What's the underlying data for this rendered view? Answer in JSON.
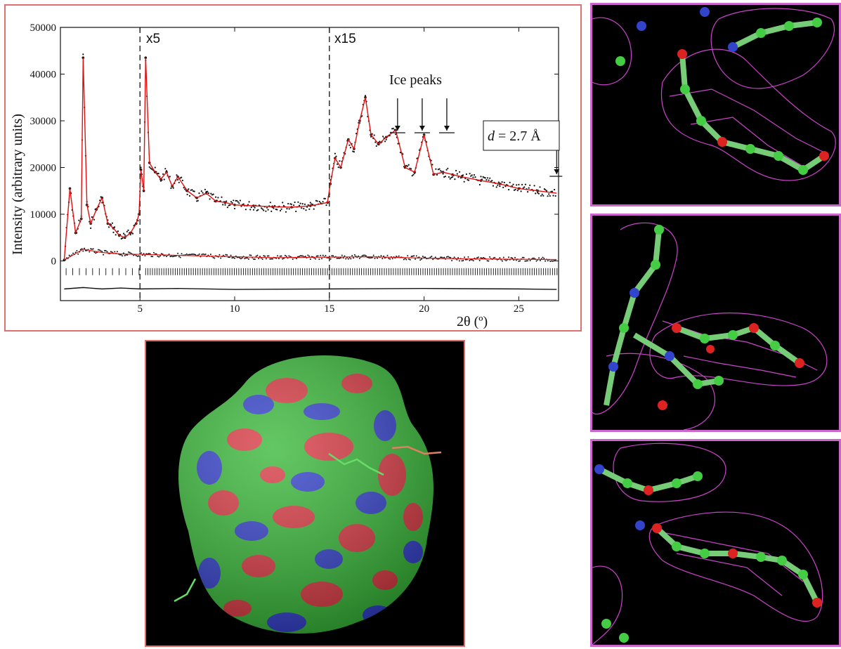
{
  "chart_data": {
    "type": "line",
    "title": "",
    "xlabel": "2θ (º)",
    "ylabel": "Intensity (arbitrary units)",
    "xlim": [
      0.8,
      27.1
    ],
    "ylim": [
      -8500,
      50000
    ],
    "x_ticks": [
      5,
      10,
      15,
      20,
      25
    ],
    "x_tick_labels": [
      "5",
      "10",
      "15",
      "20",
      "25"
    ],
    "y_ticks": [
      0,
      10000,
      20000,
      30000,
      40000,
      50000
    ],
    "y_tick_labels": [
      "0",
      "10000",
      "20000",
      "30000",
      "40000",
      "50000"
    ],
    "grid": false,
    "legend": "none",
    "annotations": {
      "scale_x5": "x5",
      "scale_x15": "x15",
      "ice_peaks": "Ice peaks",
      "resolution_prefix": "d",
      "resolution_suffix": " = 2.7 Å"
    },
    "scale_change_x": [
      5,
      15
    ],
    "ice_peak_x": [
      18.6,
      19.9,
      21.2
    ],
    "resolution_marker_x": 27.0,
    "series": [
      {
        "name": "",
        "style": "observed-points-and-calculated-line",
        "x": [
          1.0,
          1.3,
          1.6,
          1.9,
          2.0,
          2.2,
          2.4,
          2.7,
          3.0,
          3.3,
          3.6,
          3.9,
          4.2,
          4.5,
          4.8,
          4.95,
          5.05,
          5.2,
          5.3,
          5.5,
          5.8,
          6.1,
          6.4,
          6.7,
          7.0,
          7.5,
          8.0,
          8.5,
          9.0,
          9.5,
          10.0,
          11.0,
          12.0,
          13.0,
          14.0,
          14.9,
          15.05,
          15.3,
          15.6,
          16.0,
          16.3,
          16.6,
          16.9,
          17.2,
          17.6,
          18.0,
          18.5,
          19.0,
          19.5,
          20.0,
          20.5,
          21.0,
          21.5,
          22.0,
          23.0,
          24.0,
          25.0,
          26.0,
          27.0
        ],
        "y": [
          200,
          15500,
          6000,
          9000,
          43500,
          12000,
          8000,
          11000,
          13500,
          8000,
          7000,
          5500,
          5000,
          6000,
          8000,
          10000,
          19500,
          15000,
          43500,
          21000,
          19000,
          17500,
          19000,
          16000,
          18000,
          15000,
          13500,
          14500,
          12800,
          12500,
          12000,
          11800,
          11600,
          11500,
          11800,
          12500,
          16500,
          22000,
          20000,
          26000,
          24000,
          30000,
          35000,
          27000,
          25000,
          26500,
          28000,
          20000,
          19000,
          27000,
          18500,
          19000,
          18500,
          18000,
          17200,
          16500,
          15500,
          15000,
          14500
        ]
      },
      {
        "name": "",
        "style": "unscaled-full-pattern",
        "x": [
          1.0,
          2.0,
          3.0,
          4.0,
          5.0,
          6.0,
          8.0,
          10.0,
          12.0,
          15.0,
          17.0,
          20.0,
          22.0,
          25.0,
          27.0
        ],
        "y": [
          200,
          2500,
          1800,
          1500,
          1400,
          1300,
          1100,
          900,
          700,
          800,
          900,
          600,
          450,
          350,
          300
        ]
      },
      {
        "name": "",
        "style": "difference-curve",
        "x": [
          1.0,
          2.0,
          3.0,
          4.0,
          5.0,
          7.0,
          10.0,
          15.0,
          20.0,
          25.0,
          27.0
        ],
        "y": [
          -6000,
          -5700,
          -6000,
          -5800,
          -6000,
          -5900,
          -6100,
          -6000,
          -5900,
          -6000,
          -6100
        ]
      }
    ]
  },
  "panels": {
    "surface": {
      "structure": "molecular-surface",
      "colors": [
        "#2fb52f",
        "#d8303a",
        "#2a38c8"
      ]
    },
    "density_maps": {
      "count": 3,
      "mesh_color": "#cc44cc",
      "atom_colors": [
        "#44cc44",
        "#dd2222",
        "#3344cc"
      ]
    }
  }
}
